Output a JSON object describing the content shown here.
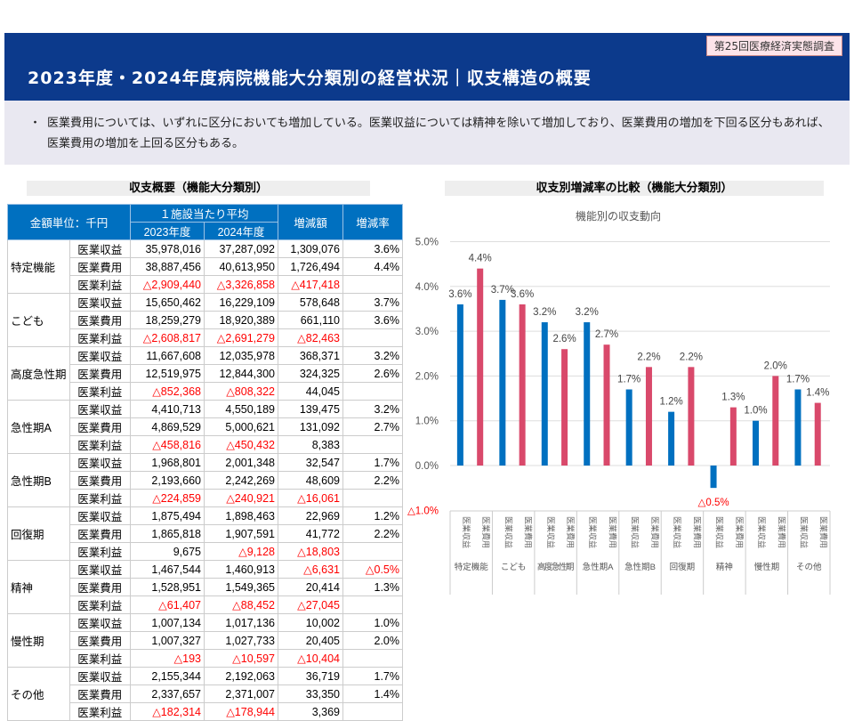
{
  "header": {
    "badge": "第25回医療経済実態調査",
    "title": "2023年度・2024年度病院機能大分類別の経営状況｜収支構造の概要"
  },
  "bullet": {
    "dot": "・",
    "text": "医業費用については、いずれに区分においても増加している。医業収益については精神を除いて増加しており、医業費用の増加を下回る区分もあれば、医業費用の増加を上回る区分もある。"
  },
  "table_title": "収支概要（機能大分類別）",
  "chart_section_title": "収支別増減率の比較（機能大分類別）",
  "table": {
    "headers": {
      "unit": "金額単位：千円",
      "avg": "１施設当たり平均",
      "y2023": "2023年度",
      "y2024": "2024年度",
      "diff": "増減額",
      "rate": "増減率"
    },
    "groups": [
      {
        "name": "特定機能",
        "rows": [
          [
            "医業収益",
            "35,978,016",
            "37,287,092",
            "1,309,076",
            "3.6%"
          ],
          [
            "医業費用",
            "38,887,456",
            "40,613,950",
            "1,726,494",
            "4.4%"
          ],
          [
            "医業利益",
            "△2,909,440",
            "△3,326,858",
            "△417,418",
            ""
          ]
        ]
      },
      {
        "name": "こども",
        "rows": [
          [
            "医業収益",
            "15,650,462",
            "16,229,109",
            "578,648",
            "3.7%"
          ],
          [
            "医業費用",
            "18,259,279",
            "18,920,389",
            "661,110",
            "3.6%"
          ],
          [
            "医業利益",
            "△2,608,817",
            "△2,691,279",
            "△82,463",
            ""
          ]
        ]
      },
      {
        "name": "高度急性期",
        "rows": [
          [
            "医業収益",
            "11,667,608",
            "12,035,978",
            "368,371",
            "3.2%"
          ],
          [
            "医業費用",
            "12,519,975",
            "12,844,300",
            "324,325",
            "2.6%"
          ],
          [
            "医業利益",
            "△852,368",
            "△808,322",
            "44,045",
            ""
          ]
        ]
      },
      {
        "name": "急性期A",
        "rows": [
          [
            "医業収益",
            "4,410,713",
            "4,550,189",
            "139,475",
            "3.2%"
          ],
          [
            "医業費用",
            "4,869,529",
            "5,000,621",
            "131,092",
            "2.7%"
          ],
          [
            "医業利益",
            "△458,816",
            "△450,432",
            "8,383",
            ""
          ]
        ]
      },
      {
        "name": "急性期B",
        "rows": [
          [
            "医業収益",
            "1,968,801",
            "2,001,348",
            "32,547",
            "1.7%"
          ],
          [
            "医業費用",
            "2,193,660",
            "2,242,269",
            "48,609",
            "2.2%"
          ],
          [
            "医業利益",
            "△224,859",
            "△240,921",
            "△16,061",
            ""
          ]
        ]
      },
      {
        "name": "回復期",
        "rows": [
          [
            "医業収益",
            "1,875,494",
            "1,898,463",
            "22,969",
            "1.2%"
          ],
          [
            "医業費用",
            "1,865,818",
            "1,907,591",
            "41,772",
            "2.2%"
          ],
          [
            "医業利益",
            "9,675",
            "△9,128",
            "△18,803",
            ""
          ]
        ]
      },
      {
        "name": "精神",
        "rows": [
          [
            "医業収益",
            "1,467,544",
            "1,460,913",
            "△6,631",
            "△0.5%"
          ],
          [
            "医業費用",
            "1,528,951",
            "1,549,365",
            "20,414",
            "1.3%"
          ],
          [
            "医業利益",
            "△61,407",
            "△88,452",
            "△27,045",
            ""
          ]
        ]
      },
      {
        "name": "慢性期",
        "rows": [
          [
            "医業収益",
            "1,007,134",
            "1,017,136",
            "10,002",
            "1.0%"
          ],
          [
            "医業費用",
            "1,007,327",
            "1,027,733",
            "20,405",
            "2.0%"
          ],
          [
            "医業利益",
            "△193",
            "△10,597",
            "△10,404",
            ""
          ]
        ]
      },
      {
        "name": "その他",
        "rows": [
          [
            "医業収益",
            "2,155,344",
            "2,192,063",
            "36,719",
            "1.7%"
          ],
          [
            "医業費用",
            "2,337,657",
            "2,371,007",
            "33,350",
            "1.4%"
          ],
          [
            "医業利益",
            "△182,314",
            "△178,944",
            "3,369",
            ""
          ]
        ]
      }
    ]
  },
  "chart_data": {
    "type": "bar",
    "title": "機能別の収支動向",
    "categories": [
      "特定機能",
      "こども",
      "高度急性期",
      "急性期A",
      "急性期B",
      "回復期",
      "精神",
      "慢性期",
      "その他"
    ],
    "series": [
      {
        "name": "医業収益",
        "color": "#0070c0",
        "values": [
          3.6,
          3.7,
          3.2,
          3.2,
          1.7,
          1.2,
          -0.5,
          1.0,
          1.7
        ],
        "labels": [
          "3.6%",
          "3.7%",
          "3.2%",
          "3.2%",
          "1.7%",
          "1.2%",
          "△0.5%",
          "1.0%",
          "1.7%"
        ]
      },
      {
        "name": "医業費用",
        "color": "#d9496b",
        "values": [
          4.4,
          3.6,
          2.6,
          2.7,
          2.2,
          2.2,
          1.3,
          2.0,
          1.4
        ],
        "labels": [
          "4.4%",
          "3.6%",
          "2.6%",
          "2.7%",
          "2.2%",
          "2.2%",
          "1.3%",
          "2.0%",
          "1.4%"
        ]
      }
    ],
    "yticks": [
      {
        "v": 5,
        "t": "5.0%"
      },
      {
        "v": 4,
        "t": "4.0%"
      },
      {
        "v": 3,
        "t": "3.0%"
      },
      {
        "v": 2,
        "t": "2.0%"
      },
      {
        "v": 1,
        "t": "1.0%"
      },
      {
        "v": 0,
        "t": "0.0%"
      },
      {
        "v": -1,
        "t": "△1.0%"
      }
    ],
    "ylim": [
      -1,
      5
    ],
    "grid": true
  }
}
